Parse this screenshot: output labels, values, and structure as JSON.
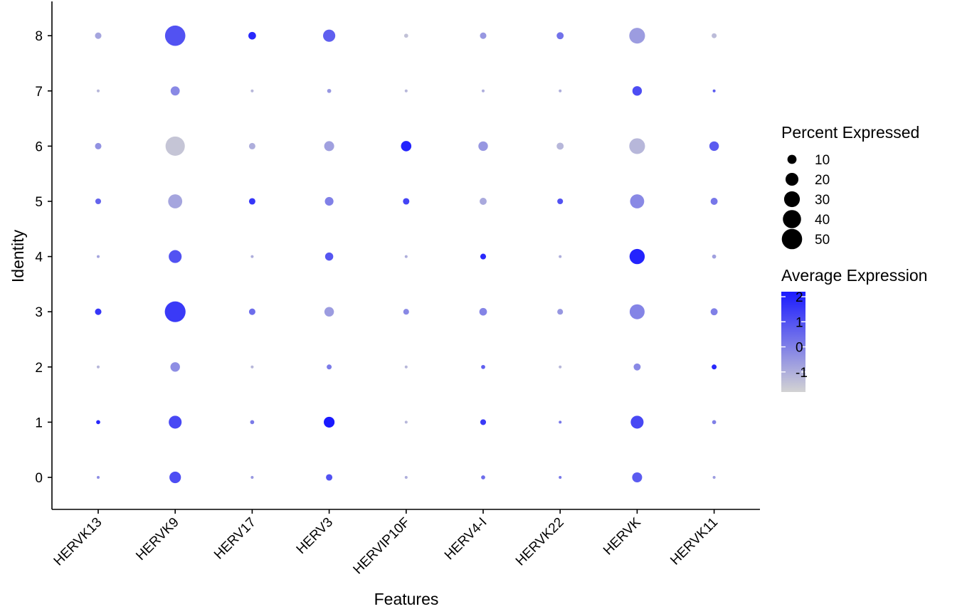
{
  "chart_data": {
    "type": "dotplot",
    "xlabel": "Features",
    "ylabel": "Identity",
    "categories": [
      "HERVK13",
      "HERVK9",
      "HERV17",
      "HERV3",
      "HERVIP10F",
      "HERV4-I",
      "HERVK22",
      "HERVK",
      "HERVK11"
    ],
    "identities": [
      "0",
      "1",
      "2",
      "3",
      "4",
      "5",
      "6",
      "7",
      "8"
    ],
    "percent_range": [
      0,
      55
    ],
    "color_range": [
      -1.8,
      2.2
    ],
    "color_low": "#d3d3d3",
    "color_high": "#1a1aff",
    "points": [
      {
        "feature": "HERVK13",
        "identity": "8",
        "pct": 5,
        "avg": -0.8
      },
      {
        "feature": "HERVK9",
        "identity": "8",
        "pct": 50,
        "avg": 1.0
      },
      {
        "feature": "HERV17",
        "identity": "8",
        "pct": 7,
        "avg": 1.9
      },
      {
        "feature": "HERV3",
        "identity": "8",
        "pct": 18,
        "avg": 0.7
      },
      {
        "feature": "HERVIP10F",
        "identity": "8",
        "pct": 2,
        "avg": -1.4
      },
      {
        "feature": "HERV4-I",
        "identity": "8",
        "pct": 5,
        "avg": -0.5
      },
      {
        "feature": "HERVK22",
        "identity": "8",
        "pct": 6,
        "avg": 0.3
      },
      {
        "feature": "HERVK",
        "identity": "8",
        "pct": 30,
        "avg": -0.6
      },
      {
        "feature": "HERVK11",
        "identity": "8",
        "pct": 3,
        "avg": -1.3
      },
      {
        "feature": "HERVK13",
        "identity": "7",
        "pct": 1,
        "avg": -1.2
      },
      {
        "feature": "HERVK9",
        "identity": "7",
        "pct": 10,
        "avg": -0.2
      },
      {
        "feature": "HERV17",
        "identity": "7",
        "pct": 1,
        "avg": -1.2
      },
      {
        "feature": "HERV3",
        "identity": "7",
        "pct": 2,
        "avg": -0.5
      },
      {
        "feature": "HERVIP10F",
        "identity": "7",
        "pct": 1,
        "avg": -1.2
      },
      {
        "feature": "HERV4-I",
        "identity": "7",
        "pct": 1,
        "avg": -1.0
      },
      {
        "feature": "HERVK22",
        "identity": "7",
        "pct": 1,
        "avg": -1.0
      },
      {
        "feature": "HERVK",
        "identity": "7",
        "pct": 11,
        "avg": 1.1
      },
      {
        "feature": "HERVK11",
        "identity": "7",
        "pct": 1,
        "avg": 0.8
      },
      {
        "feature": "HERVK13",
        "identity": "6",
        "pct": 5,
        "avg": -0.4
      },
      {
        "feature": "HERVK9",
        "identity": "6",
        "pct": 45,
        "avg": -1.5
      },
      {
        "feature": "HERV17",
        "identity": "6",
        "pct": 5,
        "avg": -1.0
      },
      {
        "feature": "HERV3",
        "identity": "6",
        "pct": 12,
        "avg": -0.7
      },
      {
        "feature": "HERVIP10F",
        "identity": "6",
        "pct": 13,
        "avg": 2.0
      },
      {
        "feature": "HERV4-I",
        "identity": "6",
        "pct": 11,
        "avg": -0.5
      },
      {
        "feature": "HERVK22",
        "identity": "6",
        "pct": 6,
        "avg": -1.2
      },
      {
        "feature": "HERVK",
        "identity": "6",
        "pct": 30,
        "avg": -1.2
      },
      {
        "feature": "HERVK11",
        "identity": "6",
        "pct": 11,
        "avg": 0.8
      },
      {
        "feature": "HERVK13",
        "identity": "5",
        "pct": 4,
        "avg": 0.6
      },
      {
        "feature": "HERVK9",
        "identity": "5",
        "pct": 24,
        "avg": -0.8
      },
      {
        "feature": "HERV17",
        "identity": "5",
        "pct": 5,
        "avg": 1.6
      },
      {
        "feature": "HERV3",
        "identity": "5",
        "pct": 9,
        "avg": 0.0
      },
      {
        "feature": "HERVIP10F",
        "identity": "5",
        "pct": 5,
        "avg": 1.3
      },
      {
        "feature": "HERV4-I",
        "identity": "5",
        "pct": 6,
        "avg": -0.9
      },
      {
        "feature": "HERVK22",
        "identity": "5",
        "pct": 4,
        "avg": 1.0
      },
      {
        "feature": "HERVK",
        "identity": "5",
        "pct": 24,
        "avg": -0.2
      },
      {
        "feature": "HERVK11",
        "identity": "5",
        "pct": 6,
        "avg": 0.2
      },
      {
        "feature": "HERVK13",
        "identity": "4",
        "pct": 1,
        "avg": -0.8
      },
      {
        "feature": "HERVK9",
        "identity": "4",
        "pct": 20,
        "avg": 1.0
      },
      {
        "feature": "HERV17",
        "identity": "4",
        "pct": 1,
        "avg": -1.0
      },
      {
        "feature": "HERV3",
        "identity": "4",
        "pct": 8,
        "avg": 0.9
      },
      {
        "feature": "HERVIP10F",
        "identity": "4",
        "pct": 1,
        "avg": -1.0
      },
      {
        "feature": "HERV4-I",
        "identity": "4",
        "pct": 4,
        "avg": 1.9
      },
      {
        "feature": "HERVK22",
        "identity": "4",
        "pct": 1,
        "avg": -1.0
      },
      {
        "feature": "HERVK",
        "identity": "4",
        "pct": 28,
        "avg": 2.0
      },
      {
        "feature": "HERVK11",
        "identity": "4",
        "pct": 2,
        "avg": -0.7
      },
      {
        "feature": "HERVK13",
        "identity": "3",
        "pct": 5,
        "avg": 1.6
      },
      {
        "feature": "HERVK9",
        "identity": "3",
        "pct": 52,
        "avg": 1.5
      },
      {
        "feature": "HERV17",
        "identity": "3",
        "pct": 5,
        "avg": 0.4
      },
      {
        "feature": "HERV3",
        "identity": "3",
        "pct": 11,
        "avg": -0.6
      },
      {
        "feature": "HERVIP10F",
        "identity": "3",
        "pct": 4,
        "avg": -0.2
      },
      {
        "feature": "HERV4-I",
        "identity": "3",
        "pct": 7,
        "avg": -0.1
      },
      {
        "feature": "HERVK22",
        "identity": "3",
        "pct": 4,
        "avg": -0.5
      },
      {
        "feature": "HERVK",
        "identity": "3",
        "pct": 27,
        "avg": -0.1
      },
      {
        "feature": "HERVK11",
        "identity": "3",
        "pct": 6,
        "avg": 0.0
      },
      {
        "feature": "HERVK13",
        "identity": "2",
        "pct": 1,
        "avg": -1.2
      },
      {
        "feature": "HERVK9",
        "identity": "2",
        "pct": 11,
        "avg": -0.3
      },
      {
        "feature": "HERV17",
        "identity": "2",
        "pct": 1,
        "avg": -1.2
      },
      {
        "feature": "HERV3",
        "identity": "2",
        "pct": 3,
        "avg": 0.1
      },
      {
        "feature": "HERVIP10F",
        "identity": "2",
        "pct": 1,
        "avg": -1.2
      },
      {
        "feature": "HERV4-I",
        "identity": "2",
        "pct": 2,
        "avg": 0.7
      },
      {
        "feature": "HERVK22",
        "identity": "2",
        "pct": 1,
        "avg": -1.2
      },
      {
        "feature": "HERVK",
        "identity": "2",
        "pct": 6,
        "avg": -0.2
      },
      {
        "feature": "HERVK11",
        "identity": "2",
        "pct": 3,
        "avg": 1.9
      },
      {
        "feature": "HERVK13",
        "identity": "1",
        "pct": 2,
        "avg": 1.9
      },
      {
        "feature": "HERVK9",
        "identity": "1",
        "pct": 20,
        "avg": 1.2
      },
      {
        "feature": "HERV17",
        "identity": "1",
        "pct": 2,
        "avg": 0.1
      },
      {
        "feature": "HERV3",
        "identity": "1",
        "pct": 14,
        "avg": 2.2
      },
      {
        "feature": "HERVIP10F",
        "identity": "1",
        "pct": 1,
        "avg": -1.2
      },
      {
        "feature": "HERV4-I",
        "identity": "1",
        "pct": 4,
        "avg": 1.5
      },
      {
        "feature": "HERVK22",
        "identity": "1",
        "pct": 1,
        "avg": 0.2
      },
      {
        "feature": "HERVK",
        "identity": "1",
        "pct": 20,
        "avg": 1.2
      },
      {
        "feature": "HERVK11",
        "identity": "1",
        "pct": 2,
        "avg": 0.0
      },
      {
        "feature": "HERVK13",
        "identity": "0",
        "pct": 1,
        "avg": -0.3
      },
      {
        "feature": "HERVK9",
        "identity": "0",
        "pct": 16,
        "avg": 1.1
      },
      {
        "feature": "HERV17",
        "identity": "0",
        "pct": 1,
        "avg": -0.5
      },
      {
        "feature": "HERV3",
        "identity": "0",
        "pct": 5,
        "avg": 1.0
      },
      {
        "feature": "HERVIP10F",
        "identity": "0",
        "pct": 1,
        "avg": -1.0
      },
      {
        "feature": "HERV4-I",
        "identity": "0",
        "pct": 2,
        "avg": 0.4
      },
      {
        "feature": "HERVK22",
        "identity": "0",
        "pct": 1,
        "avg": 0.2
      },
      {
        "feature": "HERVK",
        "identity": "0",
        "pct": 12,
        "avg": 0.8
      },
      {
        "feature": "HERVK11",
        "identity": "0",
        "pct": 1,
        "avg": -0.6
      }
    ],
    "size_legend": {
      "title": "Percent Expressed",
      "values": [
        10,
        20,
        30,
        40,
        50
      ],
      "labels": [
        "10",
        "20",
        "30",
        "40",
        "50"
      ]
    },
    "color_legend": {
      "title": "Average Expression",
      "ticks": [
        2,
        1,
        0,
        -1
      ],
      "labels": [
        "2",
        "1",
        "0",
        "-1"
      ]
    }
  }
}
